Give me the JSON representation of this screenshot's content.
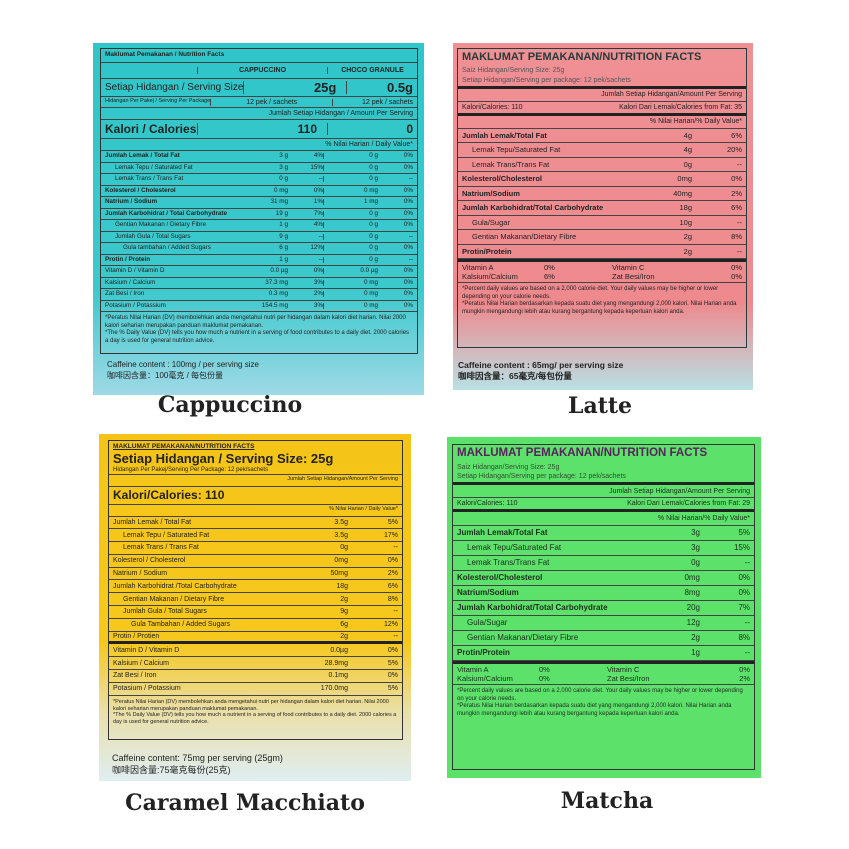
{
  "panels": [
    {
      "caption": "Cappuccino",
      "title": "Maklumat Pemakanan / Nutrition Facts",
      "columns": [
        "CAPPUCCINO",
        "CHOCO GRANULE"
      ],
      "serving_label": "Setiap Hidangan / Serving Size",
      "serving": [
        "25g",
        "0.5g"
      ],
      "package_label": "Hidangan Per Pakej / Serving Per Package",
      "package": [
        "12 pek / sachets",
        "12 pek / sachets"
      ],
      "amount_header": "Jumlah Setiap Hidangan / Amount Per Serving",
      "calories_label": "Kalori / Calories",
      "calories": [
        "110",
        "0"
      ],
      "dv_header": "% Nilai Harian / Daily Value*",
      "rows": [
        {
          "label": "Jumlah Lemak / Total Fat",
          "b": 1,
          "v": [
            "3 g",
            "4%",
            "0 g",
            "0%"
          ]
        },
        {
          "label": "Lemak Tepu / Saturated Fat",
          "i": 1,
          "v": [
            "3 g",
            "15%",
            "0 g",
            "0%"
          ]
        },
        {
          "label": "Lemak Trans / Trans Fat",
          "i": 1,
          "v": [
            "0 g",
            "--",
            "0 g",
            "--"
          ]
        },
        {
          "label": "Kolesterol / Cholesterol",
          "b": 1,
          "v": [
            "0 mg",
            "0%",
            "0 mg",
            "0%"
          ]
        },
        {
          "label": "Natrium / Sodium",
          "b": 1,
          "v": [
            "31 mg",
            "1%",
            "1 mg",
            "0%"
          ]
        },
        {
          "label": "Jumlah Karbohidrat / Total Carbohydrate",
          "b": 1,
          "v": [
            "19 g",
            "7%",
            "0 g",
            "0%"
          ]
        },
        {
          "label": "Gentian Makanan / Dietary Fibre",
          "i": 1,
          "v": [
            "1 g",
            "4%",
            "0 g",
            "0%"
          ]
        },
        {
          "label": "Jumlah Gula / Total Sugars",
          "i": 1,
          "v": [
            "9 g",
            "--",
            "0 g",
            "--"
          ]
        },
        {
          "label": "Gula tambahan / Added Sugars",
          "i": 2,
          "v": [
            "6 g",
            "12%",
            "0 g",
            "0%"
          ]
        },
        {
          "label": "Protin / Protein",
          "b": 1,
          "v": [
            "1 g",
            "--",
            "0 g",
            "--"
          ]
        },
        {
          "label": "Vitamin D / Vitamin D",
          "v": [
            "0.0 µg",
            "0%",
            "0.0 µg",
            "0%"
          ]
        },
        {
          "label": "Kalsium / Calcium",
          "v": [
            "37.3 mg",
            "3%",
            "0 mg",
            "0%"
          ]
        },
        {
          "label": "Zat Besi / Iron",
          "v": [
            "0.3 mg",
            "2%",
            "0 mg",
            "0%"
          ]
        },
        {
          "label": "Potasium / Potassium",
          "v": [
            "154.5 mg",
            "3%",
            "0 mg",
            "0%"
          ]
        }
      ],
      "footnotes": [
        "*Peratus Nilai Harian (DV) membolehkan anda mengetahui nutri per hidangan dalam kalori diet harian. Nilai 2000 kalori seharian merupakan panduan maklumat pemakanan.",
        "*The % Daily Value (DV) tells you how much a nutrient in a serving of food contributes to a daily diet. 2000 calories a day is used for general nutrition advice."
      ],
      "caffeine": [
        "Caffeine content : 100mg / per serving size",
        "咖啡因含量：100毫克 / 每包份量"
      ]
    },
    {
      "caption": "Latte",
      "title": "MAKLUMAT PEMAKANAN/NUTRITION FACTS",
      "serving": "Saiz Hidangan/Serving Size: 25g",
      "package": "Setiap Hidangan/Serving per package: 12 pek/sachets",
      "amount_header": "Jumlah Setiap Hidangan/Amount Per Serving",
      "calories": "Kalori/Calories: 110",
      "calories_fat": "Kalori Dari Lemak/Calories from Fat: 35",
      "dv_header": "% Nilai Harian/% Daily Value*",
      "rows": [
        {
          "label": "Jumlah Lemak/Total Fat",
          "b": 1,
          "v": [
            "4g",
            "6%"
          ]
        },
        {
          "label": "Lemak Tepu/Saturated Fat",
          "i": 1,
          "v": [
            "4g",
            "20%"
          ]
        },
        {
          "label": "Lemak Trans/Trans Fat",
          "i": 1,
          "v": [
            "0g",
            "--"
          ]
        },
        {
          "label": "Kolesterol/Cholesterol",
          "b": 1,
          "v": [
            "0mg",
            "0%"
          ]
        },
        {
          "label": "Natrium/Sodium",
          "b": 1,
          "v": [
            "40mg",
            "2%"
          ]
        },
        {
          "label": "Jumlah Karbohidrat/Total Carbohydrate",
          "b": 1,
          "v": [
            "18g",
            "6%"
          ]
        },
        {
          "label": "Gula/Sugar",
          "i": 1,
          "v": [
            "10g",
            "--"
          ]
        },
        {
          "label": "Gentian Makanan/Dietary Fibre",
          "i": 1,
          "v": [
            "2g",
            "8%"
          ]
        },
        {
          "label": "Protin/Protein",
          "b": 1,
          "v": [
            "2g",
            "--"
          ]
        }
      ],
      "vitamins": [
        [
          "Vitamin A",
          "0%",
          "Vitamin C",
          "0%"
        ],
        [
          "Kalsium/Calcium",
          "6%",
          "Zat Besi/Iron",
          "0%"
        ]
      ],
      "footnotes": [
        "*Percent daily values are based on a 2,000 calorie diet. Your daily values may be higher or lower depending on your calorie needs.",
        "*Peratus Nilai Harian berdasarkan kepada suatu diet yang mengandungi 2,000 kalori. Nilai Harian anda mungkin mengandungi lebih atau kurang bergantung kepada keperluan kalori anda."
      ],
      "caffeine": [
        "Caffeine content : 65mg/ per serving size",
        "咖啡因含量：65毫克/每包份量"
      ]
    },
    {
      "caption": "Caramel Macchiato",
      "title": "MAKLUMAT PEMAKANAN/NUTRITION FACTS",
      "serving": "Setiap Hidangan / Serving Size: 25g",
      "package": "Hidangan Per Pakej/Serving Per Package: 12 pek/sachets",
      "amount_header": "Jumlah Setiap Hidangan/Amount Per Serving",
      "calories": "Kalori/Calories: 110",
      "dv_header": "% Nilai Harian / Daily Value*",
      "rows": [
        {
          "label": "Jumlah Lemak / Total Fat",
          "v": [
            "3.5g",
            "5%"
          ]
        },
        {
          "label": "Lemak Tepu / Saturated Fat",
          "i": 1,
          "v": [
            "3.5g",
            "17%"
          ]
        },
        {
          "label": "Lemak Trans / Trans Fat",
          "i": 1,
          "v": [
            "0g",
            "--"
          ]
        },
        {
          "label": "Kolesterol / Cholesterol",
          "v": [
            "0mg",
            "0%"
          ]
        },
        {
          "label": "Natrium / Sodium",
          "v": [
            "50mg",
            "2%"
          ]
        },
        {
          "label": "Jumlah Karbohidrat /Total Carbohydrate",
          "v": [
            "18g",
            "6%"
          ]
        },
        {
          "label": "Gentian Makanan / Dietary Fibre",
          "i": 1,
          "v": [
            "2g",
            "8%"
          ]
        },
        {
          "label": "Jumlah Gula / Total Sugars",
          "i": 1,
          "v": [
            "9g",
            "--"
          ]
        },
        {
          "label": "Gula Tambahan / Added Sugars",
          "i": 2,
          "v": [
            "6g",
            "12%"
          ]
        },
        {
          "label": "Protin / Protien",
          "v": [
            "2g",
            "--"
          ],
          "thick": 1
        },
        {
          "label": "Vitamin D / Vitamin D",
          "v": [
            "0.0µg",
            "0%"
          ]
        },
        {
          "label": "Kalsium / Calcium",
          "v": [
            "28.9mg",
            "5%"
          ]
        },
        {
          "label": "Zat Besi / Iron",
          "v": [
            "0.1mg",
            "0%"
          ]
        },
        {
          "label": "Potasium / Potassium",
          "v": [
            "170.0mg",
            "5%"
          ]
        }
      ],
      "footnotes": [
        "*Peratus Nilai Harian (DV) membolehkan anda mengetahui nutri per hidangan dalam kalori diet harian. Nilai 2000 kalori seharian merupakan panduan maklumat pemakanan.",
        "*The % Daily Value (DV) tells you how much a nutrient in a serving of food contributes to a daily diet. 2000 calories a day is used for general nutrition advice."
      ],
      "caffeine": [
        "Caffeine content: 75mg per serving (25gm)",
        "咖啡因含量:75毫克每份(25克)"
      ]
    },
    {
      "caption": "Matcha",
      "title": "MAKLUMAT PEMAKANAN/NUTRITION FACTS",
      "serving": "Saiz Hidangan/Serving Size: 25g",
      "package": "Setiap Hidangan/Serving per package: 12 pek/sachets",
      "amount_header": "Jumlah Setiap Hidangan/Amount Per Serving",
      "calories": "Kalori/Calories: 110",
      "calories_fat": "Kalori Dari Lemak/Calories from Fat: 29",
      "dv_header": "% Nilai Harian/% Daily Value*",
      "rows": [
        {
          "label": "Jumlah Lemak/Total Fat",
          "b": 1,
          "v": [
            "3g",
            "5%"
          ]
        },
        {
          "label": "Lemak Tepu/Saturated Fat",
          "i": 1,
          "v": [
            "3g",
            "15%"
          ]
        },
        {
          "label": "Lemak Trans/Trans Fat",
          "i": 1,
          "v": [
            "0g",
            "--"
          ]
        },
        {
          "label": "Kolesterol/Cholesterol",
          "b": 1,
          "v": [
            "0mg",
            "0%"
          ]
        },
        {
          "label": "Natrium/Sodium",
          "b": 1,
          "v": [
            "8mg",
            "0%"
          ]
        },
        {
          "label": "Jumlah Karbohidrat/Total Carbohydrate",
          "b": 1,
          "v": [
            "20g",
            "7%"
          ]
        },
        {
          "label": "Gula/Sugar",
          "i": 1,
          "v": [
            "12g",
            "--"
          ]
        },
        {
          "label": "Gentian Makanan/Dietary Fibre",
          "i": 1,
          "v": [
            "2g",
            "8%"
          ]
        },
        {
          "label": "Protin/Protein",
          "b": 1,
          "v": [
            "1g",
            "--"
          ]
        }
      ],
      "vitamins": [
        [
          "Vitamin A",
          "0%",
          "Vitamin C",
          "0%"
        ],
        [
          "Kalsium/Calcium",
          "0%",
          "Zat Besi/Iron",
          "2%"
        ]
      ],
      "footnotes": [
        "*Percent daily values are based on a 2,000 calorie diet. Your daily values may be higher or lower depending on your calorie needs.",
        "*Peratus Nilai Harian berdasarkan kepada suatu diet yang mengandungi 2,000 kalori. Nilai Harian anda mungkin mengandungi lebih atau kurang bergantung kepada keperluan kalori anda."
      ]
    }
  ],
  "colors": {
    "cappuccino": "#2fc6c9",
    "latte": "#ef9095",
    "caramel": "#f5c417",
    "matcha": "#5ce26b",
    "latte_title": "#263c3a",
    "matcha_title": "#5a1f5e"
  }
}
